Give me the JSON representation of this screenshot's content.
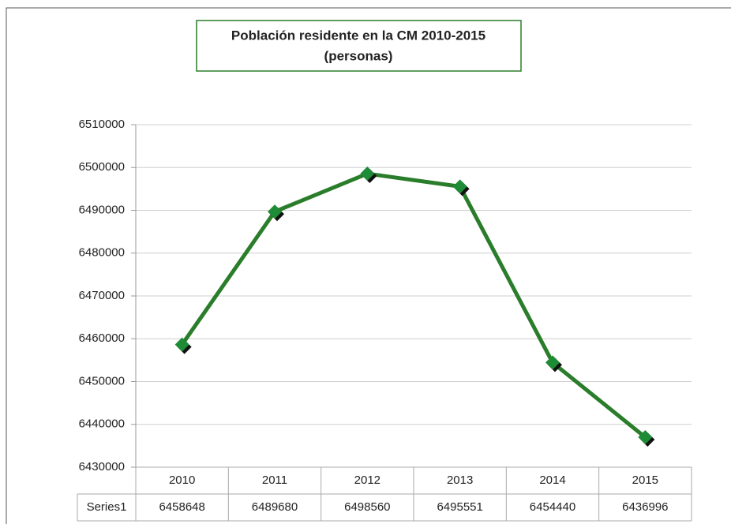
{
  "chart_data": {
    "type": "line",
    "title": "Población residente en la CM 2010-2015",
    "subtitle": "(personas)",
    "categories": [
      "2010",
      "2011",
      "2012",
      "2013",
      "2014",
      "2015"
    ],
    "series": [
      {
        "name": "Series1",
        "color": "#2a7d2a",
        "values": [
          6458648,
          6489680,
          6498560,
          6495551,
          6454440,
          6436996
        ]
      }
    ],
    "ylim": [
      6430000,
      6510000
    ],
    "yticks": [
      6430000,
      6440000,
      6450000,
      6460000,
      6470000,
      6480000,
      6490000,
      6500000,
      6510000
    ],
    "grid": true
  }
}
